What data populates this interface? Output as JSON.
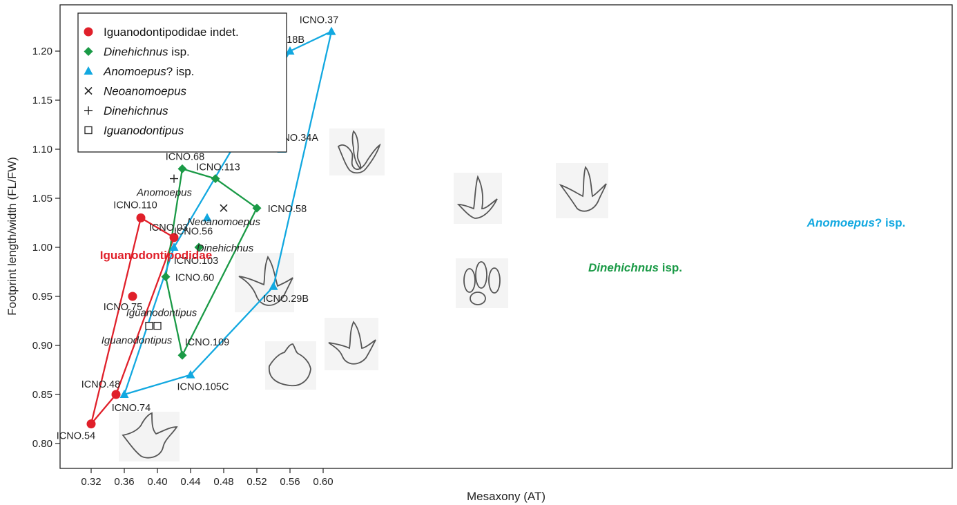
{
  "colors": {
    "iguanodontipodidae": "#e0202a",
    "dinehichnus": "#1a9a46",
    "anomoepus": "#12a8e0",
    "reference": "#222222",
    "footprint": "#555555"
  },
  "chart_data": {
    "type": "scatter",
    "title": "",
    "xlabel": "Mesaxony (AT)",
    "ylabel": "Footprint length/width (FL/FW)",
    "xlim": [
      0.29,
      0.62
    ],
    "ylim": [
      0.78,
      1.24
    ],
    "xticks": [
      "0.32",
      "0.36",
      "0.40",
      "0.44",
      "0.48",
      "0.52",
      "0.56",
      "0.60"
    ],
    "yticks": [
      "0.80",
      "0.85",
      "0.90",
      "0.95",
      "1.00",
      "1.05",
      "1.10",
      "1.15",
      "1.20"
    ],
    "grid": false,
    "legend_position": "top-left",
    "legend": [
      {
        "key": "iguanodontipodidae",
        "marker": "circle",
        "label": "Iguanodontipodidae indet.",
        "italic": "",
        "rest": ""
      },
      {
        "key": "dinehichnus",
        "marker": "diamond",
        "label": "",
        "italic": "Dinehichnus",
        "rest": " isp."
      },
      {
        "key": "anomoepus",
        "marker": "triangle",
        "label": "",
        "italic": "Anomoepus",
        "rest": "? isp."
      },
      {
        "key": "reference",
        "marker": "x",
        "label": "",
        "italic": "Neoanomoepus",
        "rest": ""
      },
      {
        "key": "reference",
        "marker": "plus",
        "label": "",
        "italic": "Dinehichnus",
        "rest": ""
      },
      {
        "key": "reference",
        "marker": "square",
        "label": "",
        "italic": "Iguanodontipus",
        "rest": ""
      }
    ],
    "series": [
      {
        "name": "Iguanodontipodidae indet.",
        "key": "iguanodontipodidae",
        "marker": "circle",
        "points": [
          {
            "x": 0.32,
            "y": 0.82,
            "label": "ICNO.54"
          },
          {
            "x": 0.35,
            "y": 0.85,
            "label": "ICNO.48"
          },
          {
            "x": 0.37,
            "y": 0.95,
            "label": "ICNO.75"
          },
          {
            "x": 0.38,
            "y": 1.03,
            "label": "ICNO.110"
          },
          {
            "x": 0.42,
            "y": 1.01,
            "label": "ICNO.03"
          }
        ],
        "hull": [
          "ICNO.54",
          "ICNO.110",
          "ICNO.03",
          "ICNO.48",
          "ICNO.54"
        ]
      },
      {
        "name": "Dinehichnus isp.",
        "key": "dinehichnus",
        "marker": "diamond",
        "points": [
          {
            "x": 0.43,
            "y": 1.08,
            "label": "ICNO.68"
          },
          {
            "x": 0.47,
            "y": 1.07,
            "label": "ICNO.113"
          },
          {
            "x": 0.52,
            "y": 1.04,
            "label": "ICNO.58"
          },
          {
            "x": 0.41,
            "y": 0.97,
            "label": "ICNO.60"
          },
          {
            "x": 0.43,
            "y": 0.89,
            "label": "ICNO.109"
          }
        ],
        "hull": [
          "ICNO.68",
          "ICNO.113",
          "ICNO.58",
          "ICNO.109",
          "ICNO.60",
          "ICNO.68"
        ]
      },
      {
        "name": "Anomoepus? isp.",
        "key": "anomoepus",
        "marker": "triangle",
        "points": [
          {
            "x": 0.61,
            "y": 1.22,
            "label": "ICNO.37"
          },
          {
            "x": 0.56,
            "y": 1.2,
            "label": "ICNO.18B"
          },
          {
            "x": 0.55,
            "y": 1.1,
            "label": "ICNO.34A"
          },
          {
            "x": 0.46,
            "y": 1.03,
            "label": "ICNO.56"
          },
          {
            "x": 0.42,
            "y": 1.0,
            "label": "ICNO.103"
          },
          {
            "x": 0.54,
            "y": 0.96,
            "label": "ICNO.29B"
          },
          {
            "x": 0.44,
            "y": 0.87,
            "label": "ICNO.105C"
          },
          {
            "x": 0.36,
            "y": 0.85,
            "label": "ICNO.74"
          }
        ],
        "hull": [
          "ICNO.74",
          "ICNO.103",
          "ICNO.18B",
          "ICNO.37",
          "ICNO.29B",
          "ICNO.105C",
          "ICNO.74"
        ]
      }
    ],
    "reference_points": [
      {
        "x": 0.48,
        "y": 1.04,
        "marker": "x",
        "label": "Neoanomoepus"
      },
      {
        "x": 0.42,
        "y": 1.07,
        "marker": "plus",
        "label": "Anomoepus"
      },
      {
        "x": 0.51,
        "y": 1.13,
        "marker": "diamond",
        "label": "Dinehichnus"
      },
      {
        "x": 0.45,
        "y": 1.0,
        "marker": "diamond",
        "label": "Dinehichnus"
      },
      {
        "x": 0.39,
        "y": 0.92,
        "marker": "square",
        "label": "Iguanodontipus"
      },
      {
        "x": 0.4,
        "y": 0.92,
        "marker": "square",
        "label": "Iguanodontipus"
      }
    ],
    "group_labels": [
      {
        "key": "iguanodontipodidae",
        "italic": "",
        "text": "Iguanodontipodidae"
      },
      {
        "key": "dinehichnus",
        "italic": "Dinehichnus",
        "text": " isp."
      },
      {
        "key": "anomoepus",
        "italic": "Anomoepus",
        "text": "? isp."
      }
    ]
  }
}
